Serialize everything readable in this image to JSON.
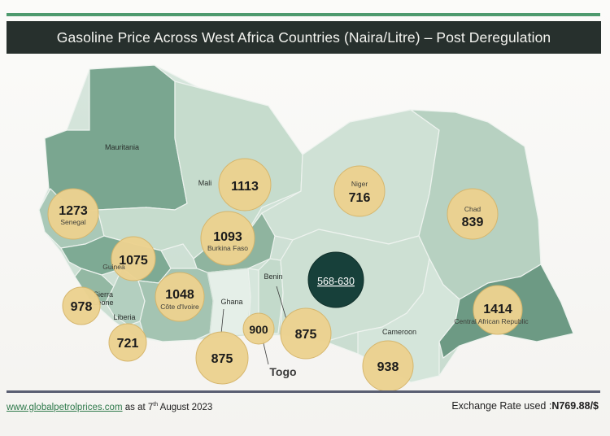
{
  "title": "Gasoline Price Across West Africa Countries (Naira/Litre) – Post Deregulation",
  "colors": {
    "title_bg": "#27302d",
    "accent_line": "#4e9a6e",
    "bubble": "#ecd290",
    "nigeria_bubble": "#17403a",
    "land_light": "#cfe0d6",
    "land_dark": "#6d9a84"
  },
  "countries": [
    {
      "name": "Mauritania",
      "price": null,
      "label": "Mauritania"
    },
    {
      "name": "Senegal",
      "price": "1273",
      "label": "Senegal"
    },
    {
      "name": "Mali",
      "price": "1113",
      "label": "Mali"
    },
    {
      "name": "Guinea",
      "price": "1075",
      "label": "Guinea"
    },
    {
      "name": "Burkina Faso",
      "price": "1093",
      "label": "Burkina Faso"
    },
    {
      "name": "Niger",
      "price": "716",
      "label": "Niger"
    },
    {
      "name": "Chad",
      "price": "839",
      "label": "Chad"
    },
    {
      "name": "Sierra Leone",
      "price": "978",
      "label": "Sierra\nLeone"
    },
    {
      "name": "Liberia",
      "price": "721",
      "label": "Liberia"
    },
    {
      "name": "Côte d'Ivoire",
      "price": "1048",
      "label": "Côte d'Ivoire"
    },
    {
      "name": "Ghana",
      "price": "875",
      "label": "Ghana"
    },
    {
      "name": "Togo",
      "price": "900",
      "label": "Togo"
    },
    {
      "name": "Benin",
      "price": "875",
      "label": "Benin"
    },
    {
      "name": "Nigeria",
      "price": "568-630",
      "label": ""
    },
    {
      "name": "Cameroon",
      "price": "938",
      "label": "Cameroon"
    },
    {
      "name": "Central African Republic",
      "price": "1414",
      "label": "Central African Republic"
    }
  ],
  "footer": {
    "source_link": "www.globalpetrolprices.com",
    "as_at_prefix": " as at  7",
    "as_at_sup": "th",
    "as_at_suffix": " August 2023",
    "exchange_label": "Exchange Rate used :",
    "exchange_value": "N769.88/$"
  }
}
